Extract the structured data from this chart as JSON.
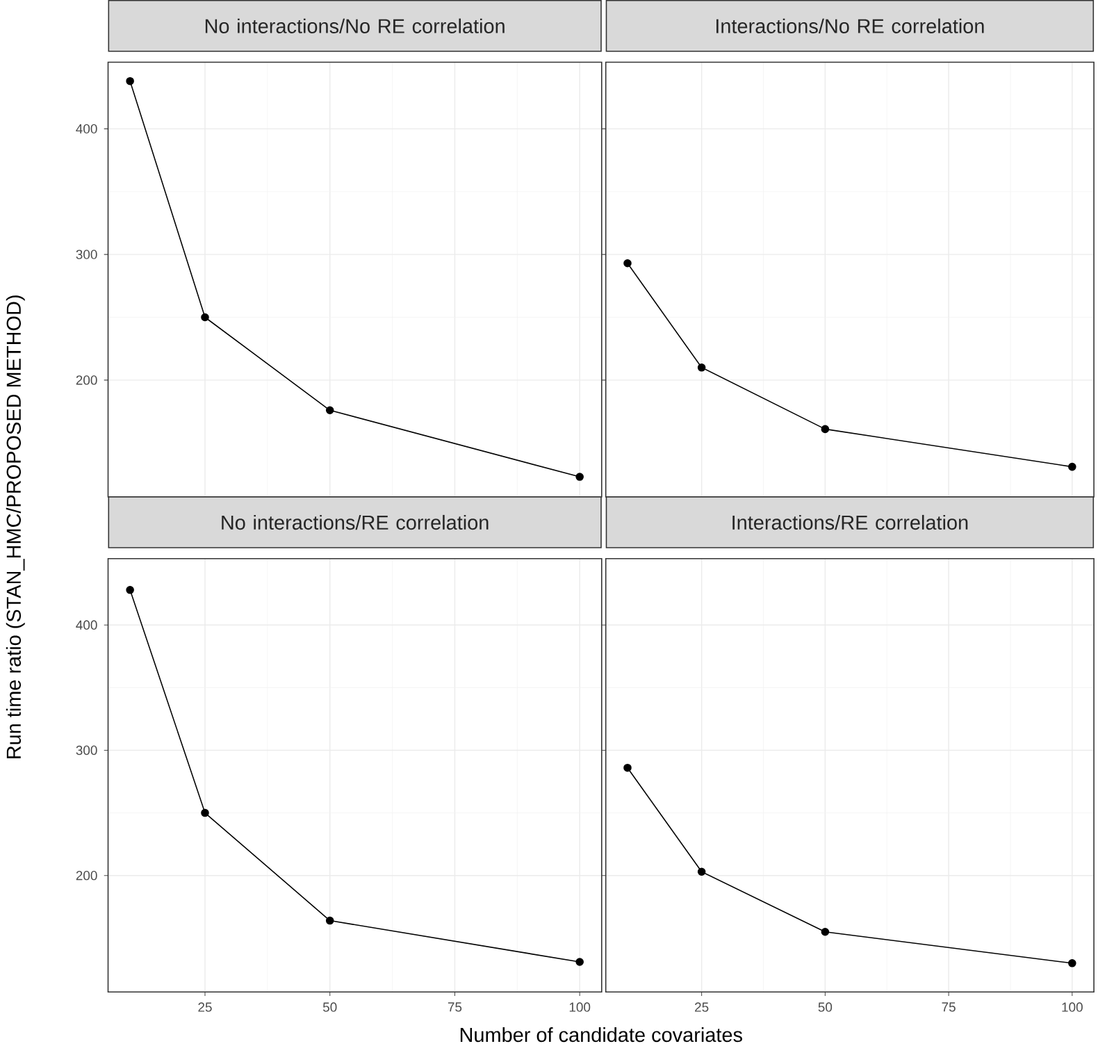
{
  "chart_data": [
    {
      "type": "line",
      "title": "No interactions/No RE correlation",
      "ylabel": "Run time ratio (STAN_HMC/PROPOSED METHOD)",
      "x": [
        10,
        25,
        50,
        100
      ],
      "values": [
        438,
        250,
        176,
        123
      ],
      "color": "#000000",
      "marker": "circle",
      "grid": true,
      "xlim": [
        5.6,
        104.4
      ],
      "ylim": [
        107,
        453
      ],
      "xticks": [
        25,
        50,
        75,
        100
      ],
      "yticks": [
        200,
        300,
        400
      ],
      "tick_labels": "y"
    },
    {
      "type": "line",
      "title": "Interactions/No RE correlation",
      "x": [
        10,
        25,
        50,
        100
      ],
      "values": [
        293,
        210,
        161,
        131
      ],
      "color": "#000000",
      "marker": "circle",
      "grid": true,
      "xlim": [
        5.6,
        104.4
      ],
      "ylim": [
        107,
        453
      ],
      "xticks": [
        25,
        50,
        75,
        100
      ],
      "yticks": [
        200,
        300,
        400
      ],
      "tick_labels": false
    },
    {
      "type": "line",
      "title": "No interactions/RE correlation",
      "xlabel": "Number of candidate covariates",
      "x": [
        10,
        25,
        50,
        100
      ],
      "values": [
        428,
        250,
        164,
        131
      ],
      "color": "#000000",
      "marker": "circle",
      "grid": true,
      "xlim": [
        5.6,
        104.4
      ],
      "ylim": [
        107,
        453
      ],
      "xticks": [
        25,
        50,
        75,
        100
      ],
      "yticks": [
        200,
        300,
        400
      ]
    },
    {
      "type": "line",
      "title": "Interactions/RE correlation",
      "x": [
        10,
        25,
        50,
        100
      ],
      "values": [
        286,
        203,
        155,
        130
      ],
      "color": "#000000",
      "marker": "circle",
      "grid": true,
      "xlim": [
        5.6,
        104.4
      ],
      "ylim": [
        107,
        453
      ],
      "xticks": [
        25,
        50,
        75,
        100
      ],
      "yticks": [
        200,
        300,
        400
      ],
      "tick_labels": "x"
    }
  ]
}
